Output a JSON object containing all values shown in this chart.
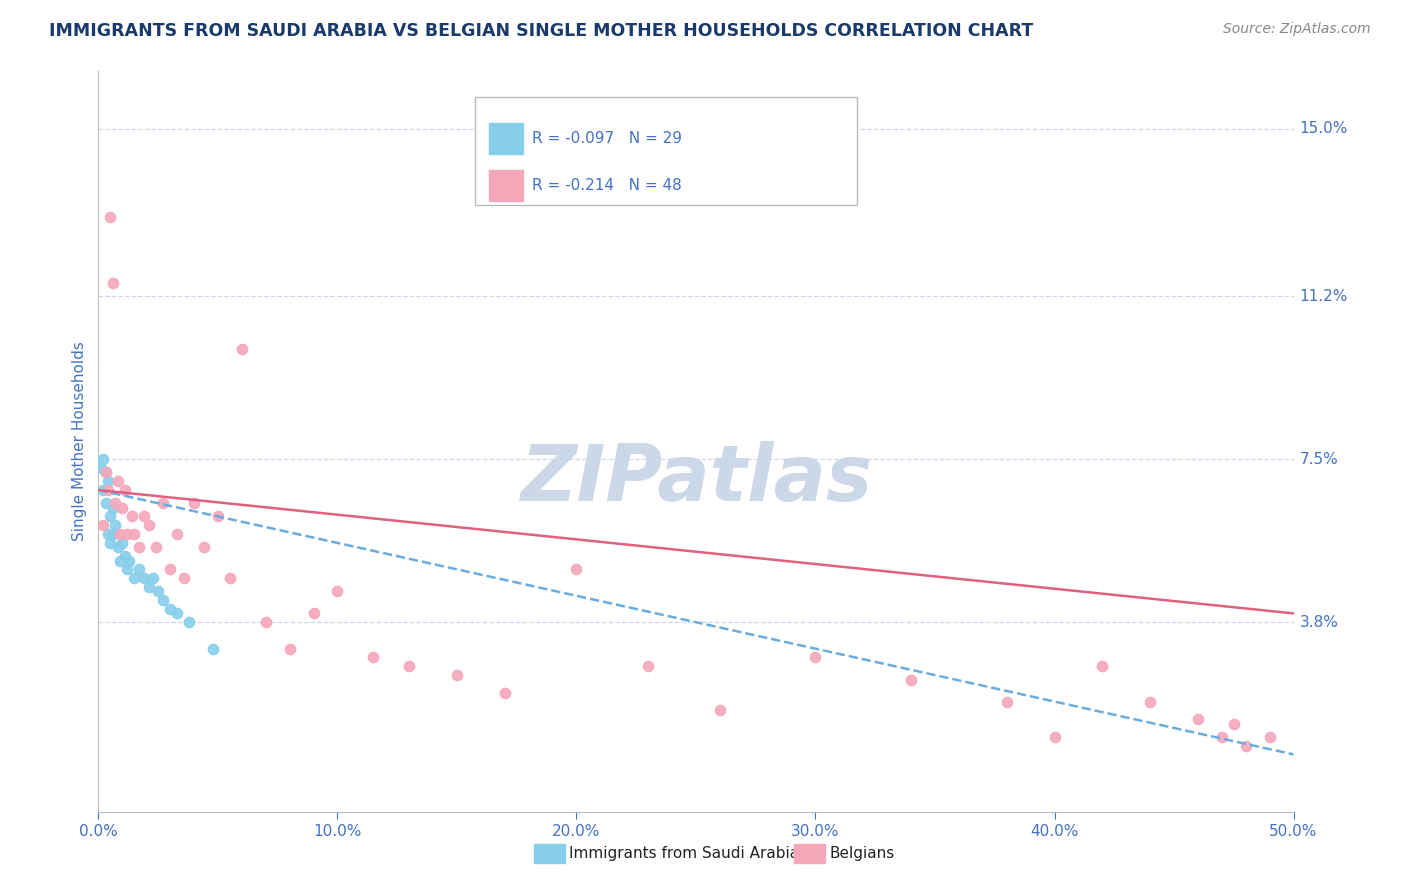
{
  "title": "IMMIGRANTS FROM SAUDI ARABIA VS BELGIAN SINGLE MOTHER HOUSEHOLDS CORRELATION CHART",
  "source_text": "Source: ZipAtlas.com",
  "ylabel": "Single Mother Households",
  "xlim": [
    0.0,
    0.5
  ],
  "ylim": [
    -0.005,
    0.163
  ],
  "xticks": [
    0.0,
    0.1,
    0.2,
    0.3,
    0.4,
    0.5
  ],
  "xticklabels": [
    "0.0%",
    "10.0%",
    "20.0%",
    "30.0%",
    "40.0%",
    "50.0%"
  ],
  "ytick_positions": [
    0.038,
    0.075,
    0.112,
    0.15
  ],
  "yticklabels": [
    "3.8%",
    "7.5%",
    "11.2%",
    "15.0%"
  ],
  "legend_entries": [
    {
      "label": "Immigrants from Saudi Arabia",
      "R": "-0.097",
      "N": "29",
      "color": "#87CEEB"
    },
    {
      "label": "Belgians",
      "R": "-0.214",
      "N": "48",
      "color": "#F4A7B9"
    }
  ],
  "watermark": "ZIPatlas",
  "watermark_color": "#ccd8e8",
  "title_color": "#1a3a6b",
  "axis_color": "#4472C4",
  "grid_color": "#c8d8ed",
  "blue_scatter_x": [
    0.001,
    0.002,
    0.002,
    0.003,
    0.003,
    0.004,
    0.004,
    0.005,
    0.005,
    0.006,
    0.006,
    0.007,
    0.008,
    0.009,
    0.01,
    0.011,
    0.012,
    0.013,
    0.015,
    0.017,
    0.019,
    0.021,
    0.023,
    0.025,
    0.027,
    0.03,
    0.033,
    0.038,
    0.048
  ],
  "blue_scatter_y": [
    0.073,
    0.068,
    0.075,
    0.072,
    0.065,
    0.07,
    0.058,
    0.062,
    0.056,
    0.064,
    0.058,
    0.06,
    0.055,
    0.052,
    0.056,
    0.053,
    0.05,
    0.052,
    0.048,
    0.05,
    0.048,
    0.046,
    0.048,
    0.045,
    0.043,
    0.041,
    0.04,
    0.038,
    0.032
  ],
  "pink_scatter_x": [
    0.002,
    0.003,
    0.004,
    0.005,
    0.006,
    0.007,
    0.008,
    0.009,
    0.01,
    0.011,
    0.012,
    0.014,
    0.015,
    0.017,
    0.019,
    0.021,
    0.024,
    0.027,
    0.03,
    0.033,
    0.036,
    0.04,
    0.044,
    0.05,
    0.055,
    0.06,
    0.07,
    0.08,
    0.09,
    0.1,
    0.115,
    0.13,
    0.15,
    0.17,
    0.2,
    0.23,
    0.26,
    0.3,
    0.34,
    0.38,
    0.4,
    0.42,
    0.44,
    0.46,
    0.47,
    0.475,
    0.48,
    0.49
  ],
  "pink_scatter_y": [
    0.06,
    0.072,
    0.068,
    0.13,
    0.115,
    0.065,
    0.07,
    0.058,
    0.064,
    0.068,
    0.058,
    0.062,
    0.058,
    0.055,
    0.062,
    0.06,
    0.055,
    0.065,
    0.05,
    0.058,
    0.048,
    0.065,
    0.055,
    0.062,
    0.048,
    0.1,
    0.038,
    0.032,
    0.04,
    0.045,
    0.03,
    0.028,
    0.026,
    0.022,
    0.05,
    0.028,
    0.018,
    0.03,
    0.025,
    0.02,
    0.012,
    0.028,
    0.02,
    0.016,
    0.012,
    0.015,
    0.01,
    0.012
  ],
  "blue_line_x": [
    0.0,
    0.5
  ],
  "blue_line_y_start": 0.068,
  "blue_line_y_end": 0.008,
  "pink_line_x": [
    0.0,
    0.5
  ],
  "pink_line_y_start": 0.068,
  "pink_line_y_end": 0.04
}
